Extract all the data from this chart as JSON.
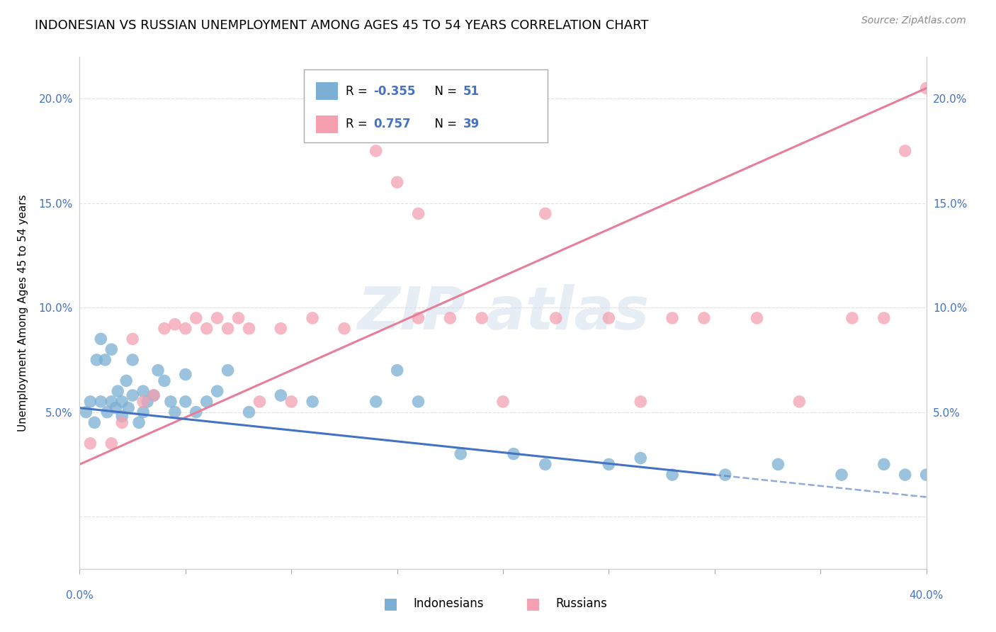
{
  "title": "INDONESIAN VS RUSSIAN UNEMPLOYMENT AMONG AGES 45 TO 54 YEARS CORRELATION CHART",
  "source": "Source: ZipAtlas.com",
  "ylabel": "Unemployment Among Ages 45 to 54 years",
  "xlim": [
    0,
    40
  ],
  "ylim": [
    -2.5,
    22
  ],
  "ytick_vals": [
    0,
    5,
    10,
    15,
    20
  ],
  "ytick_labels": [
    "",
    "5.0%",
    "10.0%",
    "15.0%",
    "20.0%"
  ],
  "indonesian_x": [
    0.3,
    0.5,
    0.7,
    0.8,
    1.0,
    1.0,
    1.2,
    1.3,
    1.5,
    1.5,
    1.7,
    1.8,
    2.0,
    2.0,
    2.2,
    2.3,
    2.5,
    2.5,
    2.8,
    3.0,
    3.0,
    3.2,
    3.5,
    3.7,
    4.0,
    4.3,
    4.5,
    5.0,
    5.0,
    5.5,
    6.0,
    6.5,
    7.0,
    8.0,
    9.5,
    11.0,
    14.0,
    15.0,
    16.0,
    18.0,
    20.5,
    22.0,
    25.0,
    26.5,
    28.0,
    30.5,
    33.0,
    36.0,
    38.0,
    39.0,
    40.0
  ],
  "indonesian_y": [
    5.0,
    5.5,
    4.5,
    7.5,
    8.5,
    5.5,
    7.5,
    5.0,
    5.5,
    8.0,
    5.2,
    6.0,
    5.5,
    4.8,
    6.5,
    5.2,
    5.8,
    7.5,
    4.5,
    5.0,
    6.0,
    5.5,
    5.8,
    7.0,
    6.5,
    5.5,
    5.0,
    5.5,
    6.8,
    5.0,
    5.5,
    6.0,
    7.0,
    5.0,
    5.8,
    5.5,
    5.5,
    7.0,
    5.5,
    3.0,
    3.0,
    2.5,
    2.5,
    2.8,
    2.0,
    2.0,
    2.5,
    2.0,
    2.5,
    2.0,
    2.0
  ],
  "russian_x": [
    0.5,
    1.5,
    2.0,
    2.5,
    3.0,
    3.5,
    4.0,
    4.5,
    5.0,
    5.5,
    6.0,
    6.5,
    7.0,
    7.5,
    8.0,
    8.5,
    9.5,
    10.0,
    11.0,
    12.5,
    14.0,
    15.0,
    16.0,
    17.5,
    19.0,
    20.0,
    22.5,
    25.0,
    26.5,
    28.0,
    29.5,
    32.0,
    34.0,
    36.5,
    38.0,
    39.0,
    40.0,
    16.0,
    22.0
  ],
  "russian_y": [
    3.5,
    3.5,
    4.5,
    8.5,
    5.5,
    5.8,
    9.0,
    9.2,
    9.0,
    9.5,
    9.0,
    9.5,
    9.0,
    9.5,
    9.0,
    5.5,
    9.0,
    5.5,
    9.5,
    9.0,
    17.5,
    16.0,
    9.5,
    9.5,
    9.5,
    5.5,
    9.5,
    9.5,
    5.5,
    9.5,
    9.5,
    9.5,
    5.5,
    9.5,
    9.5,
    17.5,
    20.5,
    14.5,
    14.5
  ],
  "indonesian_color": "#7BAFD4",
  "russian_color": "#F4A0B0",
  "indonesian_line_color": "#4472C4",
  "russian_line_color": "#E87D99",
  "bg_color": "#FFFFFF",
  "grid_color": "#DDDDDD",
  "title_fontsize": 13
}
